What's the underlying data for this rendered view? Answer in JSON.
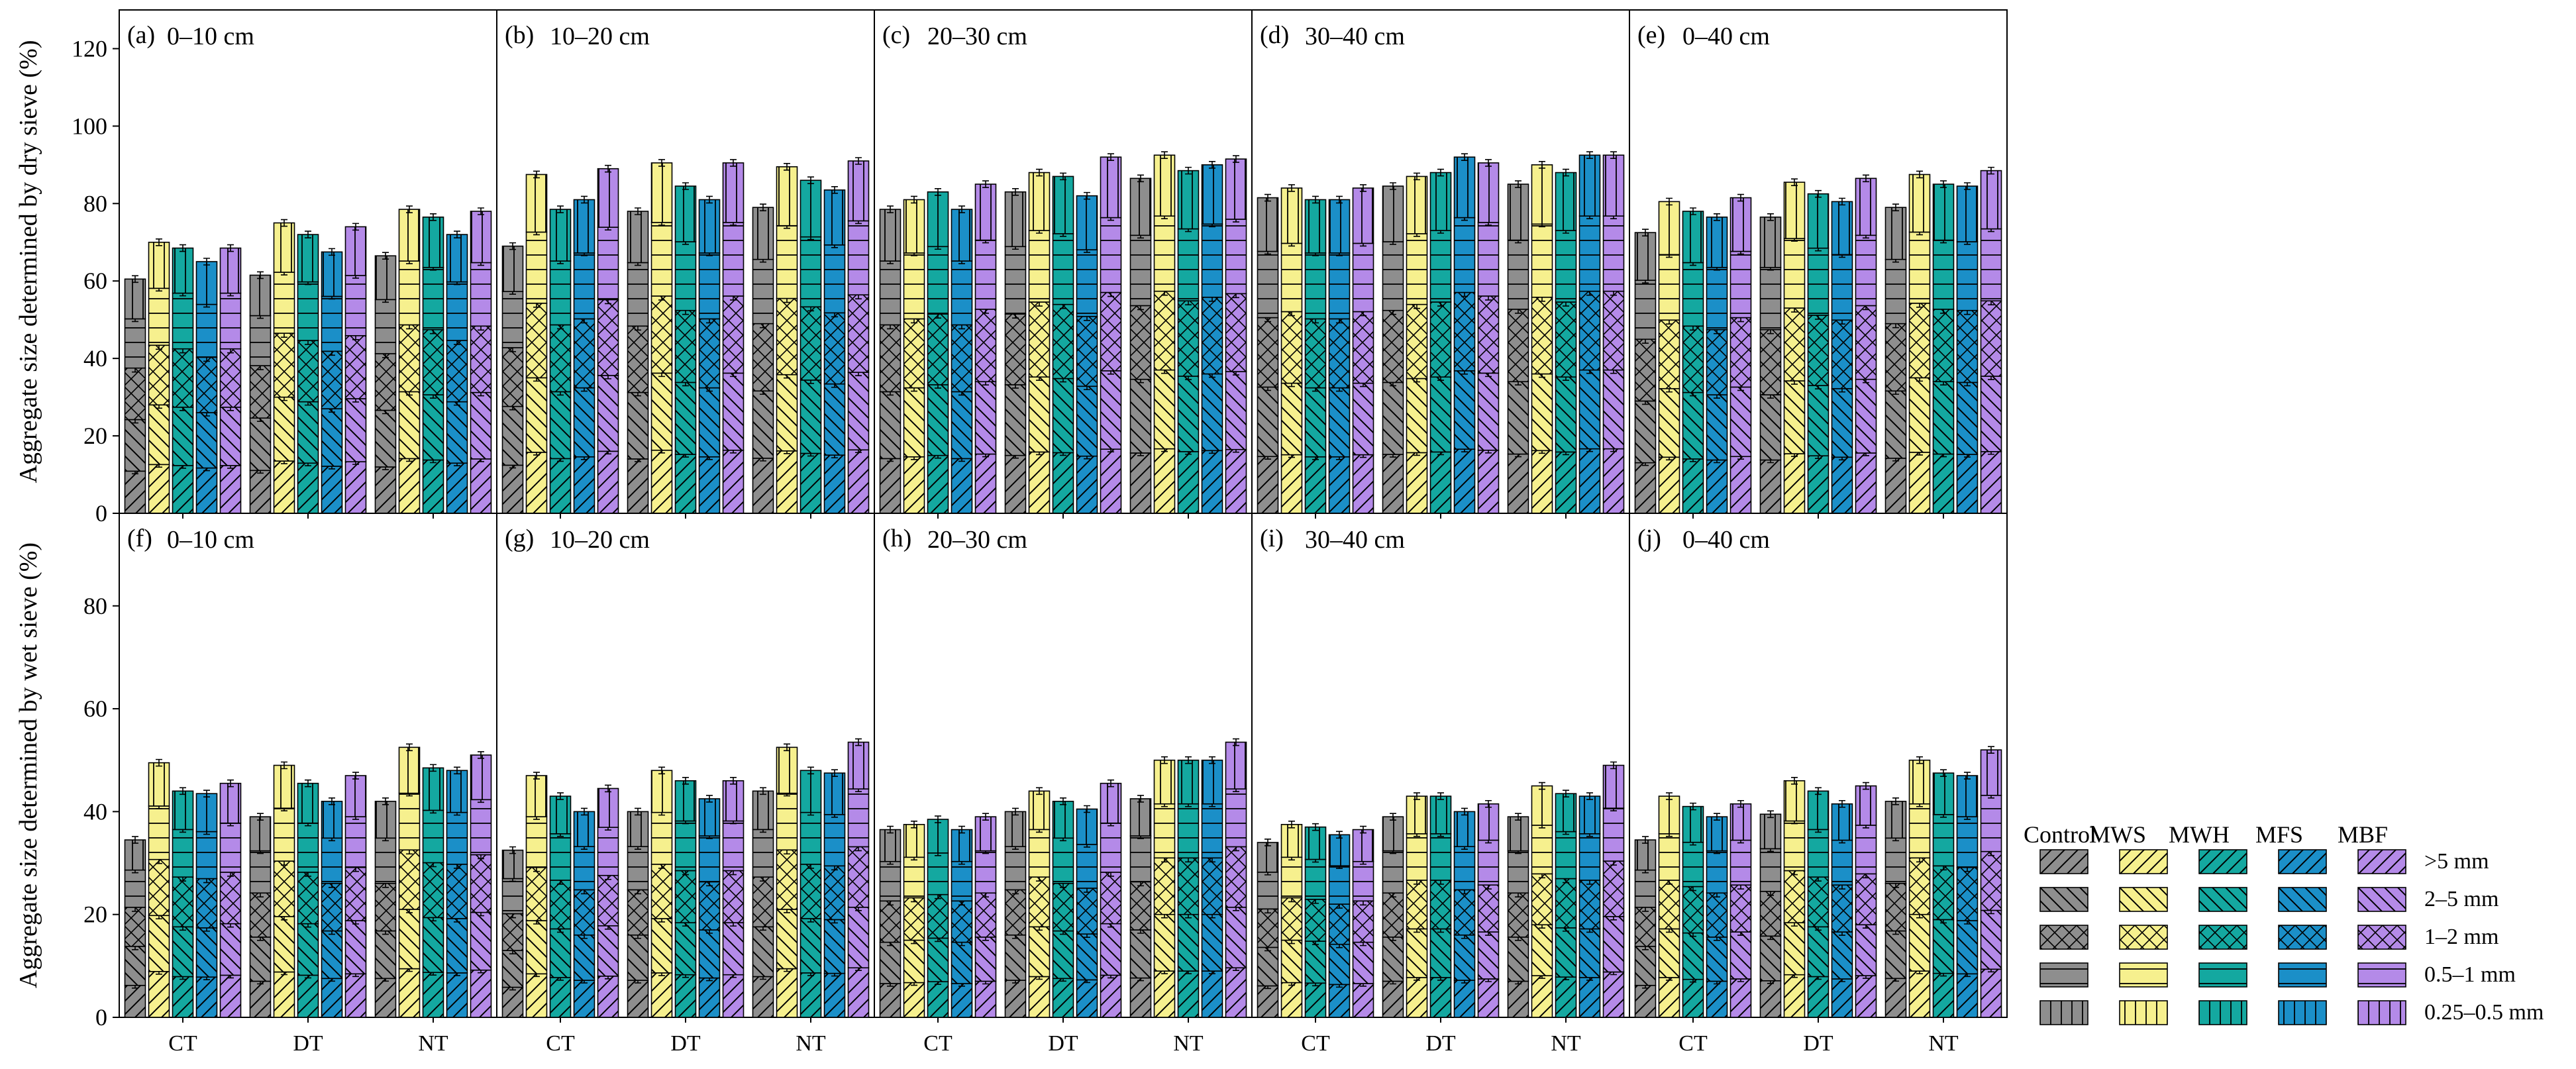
{
  "chart_data": {
    "type": "bar",
    "subtype": "stacked",
    "groups": [
      "CT",
      "DT",
      "NT"
    ],
    "treatments": [
      "Control",
      "MWS",
      "MWH",
      "MFS",
      "MBF"
    ],
    "size_classes": [
      ">5 mm",
      "2–5 mm",
      "1–2 mm",
      "0.5–1 mm",
      "0.25–0.5 mm"
    ],
    "colors": {
      "Control": "#8e8e8e",
      "MWS": "#f6f08e",
      "MWH": "#14a8a0",
      "MFS": "#1b8fc8",
      "MBF": "#b48ae8"
    },
    "rows": [
      {
        "ylabel": "Aggregate size determined by dry sieve (%)",
        "ylim": [
          0,
          130
        ],
        "yticks": [
          "0",
          "20",
          "40",
          "60",
          "80",
          "100",
          "120"
        ],
        "ytick_values": [
          0,
          20,
          40,
          60,
          80,
          100,
          120
        ],
        "panels": [
          {
            "label": "(a)",
            "title": "0–10 cm",
            "totals": [
              [
                60.5,
                70,
                68.5,
                65,
                68.5
              ],
              [
                61.5,
                75,
                72,
                67.5,
                74
              ],
              [
                66.5,
                78.5,
                76.5,
                72,
                78
              ]
            ]
          },
          {
            "label": "(b)",
            "title": "10–20 cm",
            "totals": [
              [
                69,
                87.5,
                78.5,
                81,
                89
              ],
              [
                78,
                90.5,
                84.5,
                81,
                90.5
              ],
              [
                79,
                89.5,
                86,
                83.5,
                91
              ]
            ]
          },
          {
            "label": "(c)",
            "title": "20–30 cm",
            "totals": [
              [
                78.5,
                81,
                83,
                78.5,
                85
              ],
              [
                83,
                88,
                87,
                82,
                92
              ],
              [
                86.5,
                92.5,
                88.5,
                90,
                91.5
              ]
            ]
          },
          {
            "label": "(d)",
            "title": "30–40 cm",
            "totals": [
              [
                81.5,
                84,
                81,
                81,
                84
              ],
              [
                84.5,
                87,
                88,
                92,
                90.5
              ],
              [
                85,
                90,
                88,
                92.5,
                92.5
              ]
            ]
          },
          {
            "label": "(e)",
            "title": "0–40 cm",
            "totals": [
              [
                72.5,
                80.5,
                78,
                76.5,
                81.5
              ],
              [
                76.5,
                85.5,
                82.5,
                80.5,
                86.5
              ],
              [
                79,
                87.5,
                85,
                84.5,
                88.5
              ]
            ]
          }
        ]
      },
      {
        "ylabel": "Aggregate size determined by wet sieve (%)",
        "ylim": [
          0,
          98
        ],
        "yticks": [
          "0",
          "20",
          "40",
          "60",
          "80"
        ],
        "ytick_values": [
          0,
          20,
          40,
          60,
          80
        ],
        "panels": [
          {
            "label": "(f)",
            "title": "0–10 cm",
            "totals": [
              [
                34.5,
                49.5,
                44,
                43.5,
                45.5
              ],
              [
                39,
                49,
                45.5,
                42,
                47
              ],
              [
                42,
                52.5,
                48.5,
                48,
                51
              ]
            ]
          },
          {
            "label": "(g)",
            "title": "10–20 cm",
            "totals": [
              [
                32.5,
                47,
                43,
                40,
                44.5
              ],
              [
                40,
                48,
                46,
                42.5,
                46
              ],
              [
                44,
                52.5,
                48,
                47.5,
                53.5
              ]
            ]
          },
          {
            "label": "(h)",
            "title": "20–30 cm",
            "totals": [
              [
                36.5,
                37.5,
                38.5,
                36.5,
                39
              ],
              [
                40,
                44,
                42,
                40.5,
                45.5
              ],
              [
                42.5,
                50,
                50,
                50,
                53.5
              ]
            ]
          },
          {
            "label": "(i)",
            "title": "30–40 cm",
            "totals": [
              [
                34,
                37.5,
                37,
                35.5,
                36.5
              ],
              [
                39,
                43,
                43,
                40,
                41.5
              ],
              [
                39,
                45,
                43.5,
                43,
                49
              ]
            ]
          },
          {
            "label": "(j)",
            "title": "0–40 cm",
            "totals": [
              [
                34.5,
                43,
                41,
                39,
                41.5
              ],
              [
                39.5,
                46,
                44,
                41.5,
                45
              ],
              [
                42,
                50,
                47.5,
                47,
                52
              ]
            ]
          }
        ]
      }
    ],
    "legend": {
      "headers": [
        "Control",
        "MWS",
        "MWH",
        "MFS",
        "MBF"
      ],
      "labels": [
        ">5 mm",
        "2–5 mm",
        "1–2 mm",
        "0.5–1 mm",
        "0.25–0.5 mm"
      ],
      "placement": "bottom-right"
    }
  }
}
